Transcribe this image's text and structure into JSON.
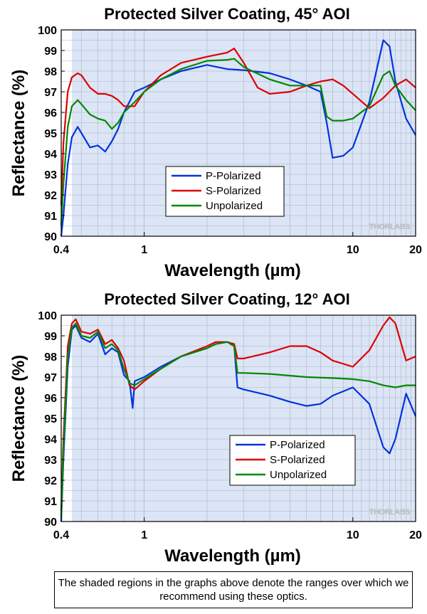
{
  "chart_data": [
    {
      "type": "line",
      "title": "Protected Silver Coating, 45° AOI",
      "xlabel": "Wavelength (µm)",
      "ylabel": "Reflectance (%)",
      "x_scale": "log",
      "xlim": [
        0.4,
        20
      ],
      "ylim": [
        90,
        100
      ],
      "x_ticks": [
        "0.4",
        "1",
        "10",
        "20"
      ],
      "y_ticks": [
        "90",
        "91",
        "92",
        "93",
        "94",
        "95",
        "96",
        "97",
        "98",
        "99",
        "100"
      ],
      "shaded_range": [
        0.45,
        20
      ],
      "legend_position": "center",
      "watermark": "THORLABS",
      "series": [
        {
          "name": "P-Polarized",
          "color": "#0033dd",
          "x": [
            0.4,
            0.41,
            0.43,
            0.45,
            0.48,
            0.5,
            0.55,
            0.6,
            0.65,
            0.7,
            0.75,
            0.8,
            0.9,
            1.0,
            1.2,
            1.5,
            2.0,
            2.5,
            3.0,
            4.0,
            5.0,
            6.0,
            7.0,
            7.5,
            8.0,
            9.0,
            10.0,
            12.0,
            14.0,
            15.0,
            16.0,
            18.0,
            20.0
          ],
          "y": [
            90.0,
            91.0,
            93.5,
            94.8,
            95.3,
            95.0,
            94.3,
            94.4,
            94.1,
            94.6,
            95.2,
            96.0,
            97.0,
            97.2,
            97.6,
            98.0,
            98.3,
            98.1,
            98.05,
            97.9,
            97.6,
            97.3,
            97.0,
            95.5,
            93.8,
            93.9,
            94.3,
            96.5,
            99.5,
            99.2,
            97.5,
            95.7,
            94.9
          ]
        },
        {
          "name": "S-Polarized",
          "color": "#dd0000",
          "x": [
            0.4,
            0.41,
            0.43,
            0.45,
            0.48,
            0.5,
            0.55,
            0.6,
            0.65,
            0.7,
            0.75,
            0.8,
            0.9,
            1.0,
            1.2,
            1.5,
            2.0,
            2.5,
            2.7,
            3.0,
            3.5,
            4.0,
            5.0,
            6.0,
            7.0,
            8.0,
            9.0,
            10.0,
            12.0,
            14.0,
            16.0,
            18.0,
            20.0
          ],
          "y": [
            91.5,
            94.5,
            97.0,
            97.7,
            97.9,
            97.8,
            97.2,
            96.9,
            96.9,
            96.8,
            96.6,
            96.3,
            96.3,
            97.0,
            97.8,
            98.4,
            98.7,
            98.9,
            99.1,
            98.4,
            97.2,
            96.9,
            97.0,
            97.3,
            97.5,
            97.6,
            97.3,
            96.9,
            96.2,
            96.7,
            97.3,
            97.6,
            97.2
          ]
        },
        {
          "name": "Unpolarized",
          "color": "#008800",
          "x": [
            0.4,
            0.41,
            0.43,
            0.45,
            0.48,
            0.5,
            0.55,
            0.6,
            0.65,
            0.7,
            0.75,
            0.8,
            0.9,
            1.0,
            1.2,
            1.5,
            2.0,
            2.5,
            2.7,
            3.0,
            4.0,
            5.0,
            6.0,
            7.0,
            7.5,
            8.0,
            9.0,
            10.0,
            12.0,
            14.0,
            15.0,
            16.0,
            18.0,
            20.0
          ],
          "y": [
            90.5,
            92.5,
            95.3,
            96.3,
            96.6,
            96.4,
            95.9,
            95.7,
            95.6,
            95.2,
            95.5,
            96.0,
            96.5,
            97.0,
            97.6,
            98.1,
            98.5,
            98.55,
            98.6,
            98.2,
            97.6,
            97.3,
            97.3,
            97.3,
            95.8,
            95.6,
            95.6,
            95.7,
            96.3,
            97.8,
            98.0,
            97.3,
            96.6,
            96.1
          ]
        }
      ]
    },
    {
      "type": "line",
      "title": "Protected Silver Coating, 12° AOI",
      "xlabel": "Wavelength (µm)",
      "ylabel": "Reflectance (%)",
      "x_scale": "log",
      "xlim": [
        0.4,
        20
      ],
      "ylim": [
        90,
        100
      ],
      "x_ticks": [
        "0.4",
        "1",
        "10",
        "20"
      ],
      "y_ticks": [
        "90",
        "91",
        "92",
        "93",
        "94",
        "95",
        "96",
        "97",
        "98",
        "99",
        "100"
      ],
      "shaded_range": [
        0.45,
        20
      ],
      "legend_position": "bottom-right",
      "watermark": "THORLABS",
      "series": [
        {
          "name": "P-Polarized",
          "color": "#0033dd",
          "x": [
            0.4,
            0.41,
            0.43,
            0.45,
            0.47,
            0.5,
            0.55,
            0.6,
            0.65,
            0.7,
            0.75,
            0.8,
            0.85,
            0.88,
            0.9,
            1.0,
            1.2,
            1.5,
            2.0,
            2.2,
            2.5,
            2.7,
            2.8,
            3.0,
            4.0,
            5.0,
            6.0,
            7.0,
            8.0,
            10.0,
            12.0,
            14.0,
            15.0,
            16.0,
            18.0,
            20.0
          ],
          "y": [
            90.0,
            93.0,
            97.5,
            99.3,
            99.5,
            98.9,
            98.7,
            99.1,
            98.1,
            98.4,
            98.2,
            97.1,
            96.8,
            95.5,
            96.8,
            97.0,
            97.5,
            98.0,
            98.4,
            98.6,
            98.7,
            98.5,
            96.5,
            96.4,
            96.1,
            95.8,
            95.6,
            95.7,
            96.1,
            96.5,
            95.7,
            93.6,
            93.3,
            94.0,
            96.2,
            95.1
          ]
        },
        {
          "name": "S-Polarized",
          "color": "#dd0000",
          "x": [
            0.4,
            0.41,
            0.43,
            0.45,
            0.47,
            0.5,
            0.55,
            0.6,
            0.65,
            0.7,
            0.75,
            0.8,
            0.85,
            0.9,
            1.0,
            1.2,
            1.5,
            2.0,
            2.2,
            2.5,
            2.7,
            2.8,
            3.0,
            4.0,
            5.0,
            6.0,
            7.0,
            8.0,
            10.0,
            12.0,
            14.0,
            15.0,
            16.0,
            18.0,
            20.0
          ],
          "y": [
            90.5,
            94.0,
            98.5,
            99.6,
            99.8,
            99.2,
            99.1,
            99.3,
            98.6,
            98.8,
            98.4,
            97.8,
            96.6,
            96.4,
            96.8,
            97.4,
            98.0,
            98.5,
            98.7,
            98.7,
            98.6,
            97.9,
            97.9,
            98.2,
            98.5,
            98.5,
            98.2,
            97.8,
            97.5,
            98.3,
            99.5,
            99.9,
            99.6,
            97.8,
            98.0
          ]
        },
        {
          "name": "Unpolarized",
          "color": "#008800",
          "x": [
            0.4,
            0.41,
            0.43,
            0.45,
            0.47,
            0.5,
            0.55,
            0.6,
            0.65,
            0.7,
            0.75,
            0.8,
            0.85,
            0.9,
            1.0,
            1.2,
            1.5,
            2.0,
            2.2,
            2.5,
            2.7,
            2.8,
            3.0,
            4.0,
            6.0,
            8.0,
            10.0,
            12.0,
            14.0,
            16.0,
            18.0,
            20.0
          ],
          "y": [
            90.2,
            93.5,
            98.0,
            99.4,
            99.6,
            99.0,
            98.9,
            99.2,
            98.4,
            98.6,
            98.3,
            97.4,
            96.7,
            96.6,
            96.9,
            97.4,
            98.0,
            98.4,
            98.6,
            98.7,
            98.5,
            97.2,
            97.2,
            97.15,
            97.0,
            96.95,
            96.9,
            96.8,
            96.6,
            96.5,
            96.6,
            96.6
          ]
        }
      ]
    }
  ],
  "footnote": "The shaded regions in the graphs above denote the ranges over which we recommend using these optics."
}
